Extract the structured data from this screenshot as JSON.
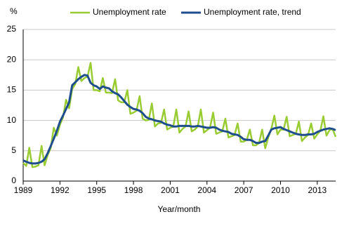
{
  "chart_data": {
    "type": "line",
    "y_label": "%",
    "x_label": "Year/month",
    "x": [
      1989,
      1989.25,
      1989.5,
      1989.75,
      1990,
      1990.25,
      1990.5,
      1990.75,
      1991,
      1991.25,
      1991.5,
      1991.75,
      1992,
      1992.25,
      1992.5,
      1992.75,
      1993,
      1993.25,
      1993.5,
      1993.75,
      1994,
      1994.25,
      1994.5,
      1994.75,
      1995,
      1995.25,
      1995.5,
      1995.75,
      1996,
      1996.25,
      1996.5,
      1996.75,
      1997,
      1997.25,
      1997.5,
      1997.75,
      1998,
      1998.25,
      1998.5,
      1998.75,
      1999,
      1999.25,
      1999.5,
      1999.75,
      2000,
      2000.25,
      2000.5,
      2000.75,
      2001,
      2001.25,
      2001.5,
      2001.75,
      2002,
      2002.25,
      2002.5,
      2002.75,
      2003,
      2003.25,
      2003.5,
      2003.75,
      2004,
      2004.25,
      2004.5,
      2004.75,
      2005,
      2005.25,
      2005.5,
      2005.75,
      2006,
      2006.25,
      2006.5,
      2006.75,
      2007,
      2007.25,
      2007.5,
      2007.75,
      2008,
      2008.25,
      2008.5,
      2008.75,
      2009,
      2009.25,
      2009.5,
      2009.75,
      2010,
      2010.25,
      2010.5,
      2010.75,
      2011,
      2011.25,
      2011.5,
      2011.75,
      2012,
      2012.25,
      2012.5,
      2012.75,
      2013,
      2013.25,
      2013.5,
      2013.75,
      2014,
      2014.25,
      2014.5
    ],
    "series": [
      {
        "name": "Unemployment rate",
        "color": "#99cc33",
        "width": 2.5,
        "values": [
          3.0,
          2.5,
          5.5,
          2.3,
          2.4,
          2.6,
          5.8,
          2.6,
          4.3,
          5.5,
          8.8,
          7.5,
          9.3,
          10.5,
          13.4,
          12.0,
          15.2,
          16.0,
          18.8,
          16.5,
          17.0,
          17.2,
          19.5,
          15.0,
          15.0,
          14.8,
          17.0,
          14.6,
          14.6,
          14.5,
          16.8,
          13.3,
          13.0,
          13.0,
          15.0,
          11.1,
          11.3,
          11.6,
          14.0,
          10.3,
          10.0,
          10.1,
          12.8,
          9.0,
          9.5,
          9.6,
          11.8,
          8.5,
          8.8,
          9.0,
          11.8,
          8.0,
          8.6,
          9.0,
          11.5,
          8.2,
          8.5,
          9.0,
          11.8,
          8.0,
          8.4,
          8.8,
          11.3,
          7.8,
          8.0,
          8.2,
          10.3,
          7.2,
          7.4,
          7.6,
          9.5,
          6.5,
          6.5,
          6.8,
          8.5,
          5.9,
          5.9,
          6.3,
          8.5,
          5.4,
          7.2,
          8.6,
          10.8,
          7.7,
          8.5,
          8.5,
          10.6,
          7.4,
          7.6,
          7.8,
          9.8,
          6.6,
          7.2,
          7.6,
          9.5,
          7.0,
          7.7,
          8.3,
          10.7,
          7.5,
          8.4,
          8.6,
          7.3
        ]
      },
      {
        "name": "Unemployment rate, trend",
        "color": "#1f4e8c",
        "width": 3,
        "values": [
          3.4,
          3.2,
          3.0,
          2.9,
          2.9,
          3.0,
          3.2,
          3.6,
          4.6,
          5.8,
          7.0,
          8.3,
          9.8,
          10.8,
          11.9,
          13.0,
          15.8,
          16.3,
          16.8,
          17.2,
          17.5,
          17.4,
          16.2,
          15.8,
          15.6,
          15.2,
          15.6,
          15.4,
          15.3,
          14.8,
          14.5,
          14.3,
          13.8,
          13.2,
          12.6,
          12.2,
          11.9,
          11.8,
          11.6,
          11.2,
          10.6,
          10.3,
          10.2,
          10.0,
          9.9,
          9.8,
          9.5,
          9.3,
          9.2,
          9.0,
          9.0,
          9.1,
          9.1,
          9.1,
          9.1,
          9.0,
          9.0,
          9.1,
          9.0,
          8.9,
          8.8,
          8.8,
          8.9,
          8.8,
          8.5,
          8.3,
          8.2,
          8.1,
          7.8,
          7.7,
          7.6,
          7.3,
          6.9,
          6.8,
          6.8,
          6.6,
          6.3,
          6.3,
          6.5,
          6.6,
          7.5,
          8.5,
          8.7,
          8.8,
          8.9,
          8.6,
          8.4,
          8.2,
          8.0,
          7.8,
          7.7,
          7.6,
          7.6,
          7.7,
          7.7,
          7.8,
          8.1,
          8.3,
          8.5,
          8.6,
          8.7,
          8.6,
          8.4
        ]
      }
    ],
    "xlim": [
      1989,
      2014.5
    ],
    "xticks": [
      1989,
      1992,
      1995,
      1998,
      2001,
      2004,
      2007,
      2010,
      2013
    ],
    "ylim": [
      0,
      25
    ],
    "yticks": [
      0,
      5,
      10,
      15,
      20,
      25
    ],
    "grid": true
  }
}
